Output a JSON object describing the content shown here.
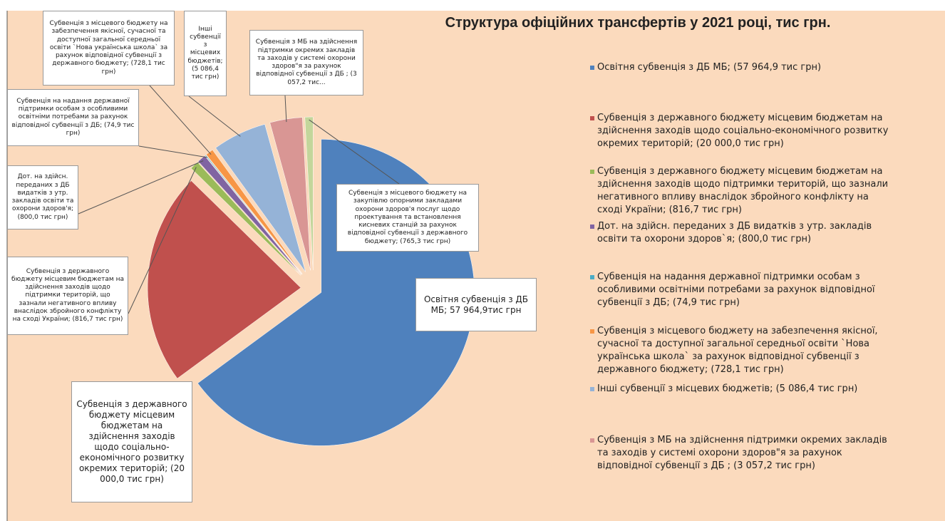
{
  "chart_data": {
    "type": "pie",
    "title": "Структура офіційних трансфертів у  2021 році, тис грн.",
    "categories": [
      "Освітня субвенція з ДБ МБ; 57 964,9тис грн",
      "Субвенція з державного бюджету місцевим бюджетам на здійснення заходів щодо соціально-економічного розвитку окремих територій; (20 000,0 тис грн)",
      "Субвенція з державного бюджету місцевим бюджетам на здійснення заходів щодо підтримки територій, що зазнали негативного впливу внаслідок збройного конфлікту на сході України; (816,7 тис грн)",
      "Дот. на здійсн. переданих з ДБ видатків з утр. закладів освіти та охорони здоров'я; (800,0 тис грн)",
      "Субвенція на надання державної підтримки особам з особливими освітніми потребами за рахунок відповідної субвенції з ДБ; (74,9 тис грн)",
      "Субвенція з місцевого бюджету на забезпечення якісної, сучасної та доступної загальної середньої освіти `Нова українська школа` за рахунок відповідної субвенції з державного бюджету; (728,1 тис грн)",
      "Інші субвенції з місцевих бюджетів; (5 086,4 тис грн)",
      "Субвенція з МБ на здійснення підтримки окремих закладів та заходів у системі охорони здоров\"я за рахунок відповідної субвенції з ДБ ; (3 057,2 тис...",
      "Субвенція з місцевого бюджету на закупівлю опорними закладами охорони здоров'я послуг щодо проектування та встановлення кисневих станцій за рахунок відповідної субвенції з державного бюджету; (765,3 тис грн)"
    ],
    "values": [
      57964.9,
      20000.0,
      816.7,
      800.0,
      74.9,
      728.1,
      5086.4,
      3057.2,
      765.3
    ],
    "colors": [
      "#4f81bd",
      "#c0504d",
      "#9bbb59",
      "#8064a2",
      "#4bacc6",
      "#f79646",
      "#95b3d7",
      "#d99694",
      "#c3d69b"
    ],
    "legend": [
      "Освітня субвенція з ДБ МБ; (57 964,9 тис грн)",
      "Субвенція з державного бюджету місцевим бюджетам на здійснення заходів щодо соціально-економічного розвитку окремих територій; (20 000,0 тис грн)",
      "Субвенція з державного бюджету місцевим бюджетам на здійснення заходів щодо підтримки територій, що зазнали негативного впливу внаслідок збройного конфлікту на сході України; (816,7 тис грн)",
      "Дот. на здійсн. переданих з ДБ видатків з утр. закладів освіти та охорони здоров`я; (800,0 тис грн)",
      "Субвенція на надання державної підтримки особам з особливими освітніми потребами за рахунок відповідної субвенції з ДБ; (74,9 тис грн)",
      "Субвенція з місцевого бюджету на забезпечення якісної, сучасної та доступної загальної середньої освіти `Нова українська школа` за рахунок відповідної субвенції з державного бюджету; (728,1 тис грн)",
      "Інші субвенції з місцевих бюджетів; (5 086,4 тис грн)",
      "Субвенція з МБ на здійснення підтримки окремих закладів та заходів у системі охорони здоров\"я за рахунок відповідної субвенції з ДБ ; (3 057,2 тис грн)"
    ]
  }
}
